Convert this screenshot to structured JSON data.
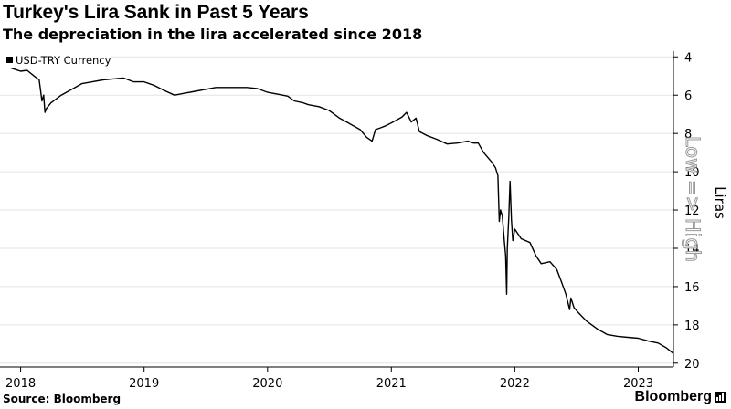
{
  "title": "Turkey's Lira Sank in Past 5 Years",
  "subtitle": "The depreciation in the lira accelerated since 2018",
  "source": "Source: Bloomberg",
  "brand": "Bloomberg",
  "brand_icon": "bloomberg-terminal-icon",
  "chart_data": {
    "type": "line",
    "title": "Turkey's Lira Sank in Past 5 Years",
    "subtitle": "The depreciation in the lira accelerated since 2018",
    "ylabel": "Liras",
    "y_axis_note": "Low => High",
    "y_inverted": true,
    "ylim": [
      3.7,
      20.2
    ],
    "yticks": [
      4,
      6,
      8,
      10,
      12,
      14,
      16,
      18,
      20
    ],
    "xlim": [
      "2017-11-01",
      "2023-04-15"
    ],
    "xticks": [
      {
        "label": "2018",
        "date": "2018-01-01"
      },
      {
        "label": "2019",
        "date": "2019-01-01"
      },
      {
        "label": "2020",
        "date": "2020-01-01"
      },
      {
        "label": "2021",
        "date": "2021-01-01"
      },
      {
        "label": "2022",
        "date": "2022-01-01"
      },
      {
        "label": "2023",
        "date": "2023-01-01"
      }
    ],
    "grid": "horizontal",
    "legend_position": "top-left",
    "series": [
      {
        "name": "USD-TRY Currency",
        "color": "#000000",
        "points": [
          [
            "2017-11-01",
            4.5
          ],
          [
            "2017-11-20",
            4.5
          ],
          [
            "2017-12-15",
            4.65
          ],
          [
            "2018-01-01",
            4.75
          ],
          [
            "2018-01-20",
            4.7
          ],
          [
            "2018-02-10",
            5.0
          ],
          [
            "2018-02-25",
            5.2
          ],
          [
            "2018-03-05",
            6.3
          ],
          [
            "2018-03-10",
            6.0
          ],
          [
            "2018-03-14",
            6.9
          ],
          [
            "2018-03-18",
            6.7
          ],
          [
            "2018-04-01",
            6.4
          ],
          [
            "2018-05-01",
            6.0
          ],
          [
            "2018-06-01",
            5.7
          ],
          [
            "2018-07-01",
            5.4
          ],
          [
            "2018-08-01",
            5.3
          ],
          [
            "2018-09-01",
            5.2
          ],
          [
            "2018-10-01",
            5.15
          ],
          [
            "2018-11-01",
            5.1
          ],
          [
            "2018-12-01",
            5.3
          ],
          [
            "2019-01-01",
            5.3
          ],
          [
            "2019-02-01",
            5.5
          ],
          [
            "2019-03-01",
            5.75
          ],
          [
            "2019-04-01",
            6.0
          ],
          [
            "2019-05-01",
            5.9
          ],
          [
            "2019-06-01",
            5.8
          ],
          [
            "2019-07-01",
            5.7
          ],
          [
            "2019-08-01",
            5.6
          ],
          [
            "2019-09-01",
            5.6
          ],
          [
            "2019-10-01",
            5.6
          ],
          [
            "2019-11-01",
            5.6
          ],
          [
            "2019-12-01",
            5.65
          ],
          [
            "2020-01-01",
            5.85
          ],
          [
            "2020-02-01",
            5.95
          ],
          [
            "2020-03-01",
            6.05
          ],
          [
            "2020-03-20",
            6.3
          ],
          [
            "2020-04-15",
            6.4
          ],
          [
            "2020-05-01",
            6.5
          ],
          [
            "2020-06-01",
            6.6
          ],
          [
            "2020-07-01",
            6.8
          ],
          [
            "2020-08-01",
            7.2
          ],
          [
            "2020-09-01",
            7.5
          ],
          [
            "2020-10-01",
            7.8
          ],
          [
            "2020-10-20",
            8.2
          ],
          [
            "2020-11-05",
            8.4
          ],
          [
            "2020-11-15",
            7.8
          ],
          [
            "2020-12-01",
            7.7
          ],
          [
            "2020-12-15",
            7.6
          ],
          [
            "2021-01-01",
            7.45
          ],
          [
            "2021-02-01",
            7.15
          ],
          [
            "2021-02-15",
            6.9
          ],
          [
            "2021-03-01",
            7.4
          ],
          [
            "2021-03-15",
            7.2
          ],
          [
            "2021-03-25",
            7.9
          ],
          [
            "2021-04-15",
            8.1
          ],
          [
            "2021-05-15",
            8.3
          ],
          [
            "2021-06-15",
            8.55
          ],
          [
            "2021-07-15",
            8.5
          ],
          [
            "2021-08-15",
            8.4
          ],
          [
            "2021-09-01",
            8.5
          ],
          [
            "2021-09-15",
            8.5
          ],
          [
            "2021-10-01",
            9.0
          ],
          [
            "2021-10-25",
            9.5
          ],
          [
            "2021-11-05",
            9.8
          ],
          [
            "2021-11-12",
            10.2
          ],
          [
            "2021-11-16",
            12.6
          ],
          [
            "2021-11-20",
            12.0
          ],
          [
            "2021-11-25",
            12.3
          ],
          [
            "2021-12-01",
            13.6
          ],
          [
            "2021-12-05",
            14.4
          ],
          [
            "2021-12-08",
            16.4
          ],
          [
            "2021-12-10",
            14.0
          ],
          [
            "2021-12-14",
            12.5
          ],
          [
            "2021-12-18",
            10.5
          ],
          [
            "2021-12-22",
            12.5
          ],
          [
            "2021-12-26",
            13.6
          ],
          [
            "2022-01-01",
            13.0
          ],
          [
            "2022-01-20",
            13.5
          ],
          [
            "2022-02-15",
            13.7
          ],
          [
            "2022-03-05",
            14.4
          ],
          [
            "2022-03-20",
            14.8
          ],
          [
            "2022-04-15",
            14.7
          ],
          [
            "2022-05-05",
            15.1
          ],
          [
            "2022-05-20",
            15.8
          ],
          [
            "2022-06-01",
            16.4
          ],
          [
            "2022-06-12",
            17.2
          ],
          [
            "2022-06-16",
            16.6
          ],
          [
            "2022-06-25",
            17.1
          ],
          [
            "2022-07-10",
            17.4
          ],
          [
            "2022-08-01",
            17.8
          ],
          [
            "2022-09-01",
            18.2
          ],
          [
            "2022-10-01",
            18.5
          ],
          [
            "2022-11-01",
            18.6
          ],
          [
            "2022-12-01",
            18.65
          ],
          [
            "2023-01-01",
            18.7
          ],
          [
            "2023-02-01",
            18.85
          ],
          [
            "2023-03-01",
            18.95
          ],
          [
            "2023-03-25",
            19.2
          ],
          [
            "2023-04-15",
            19.5
          ]
        ]
      }
    ]
  }
}
